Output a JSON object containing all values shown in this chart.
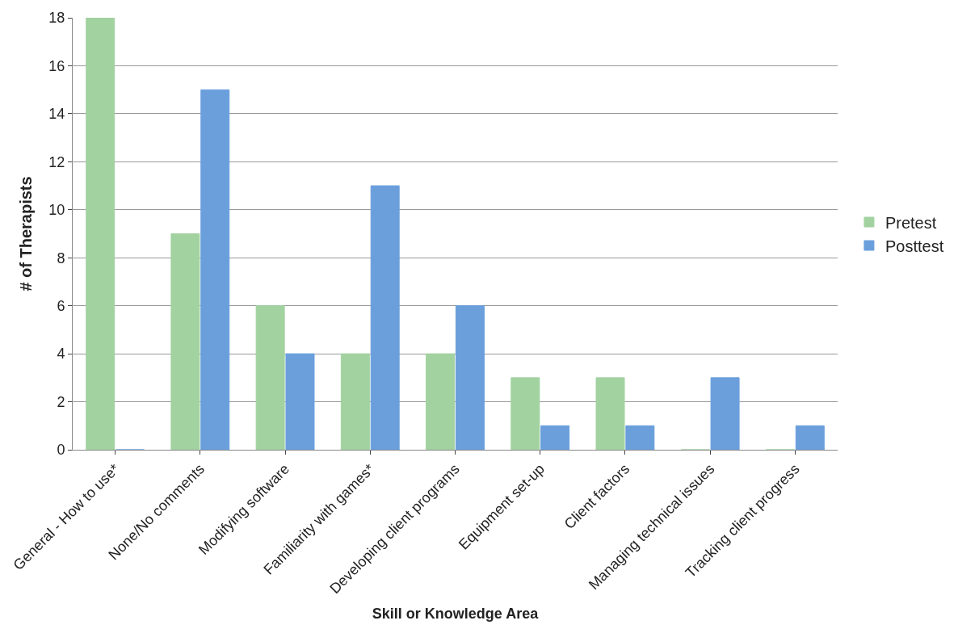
{
  "chart_data": {
    "type": "bar",
    "xlabel": "Skill or Knowledge Area",
    "ylabel": "# of Therapists",
    "categories": [
      "General - How to use*",
      "None/No comments",
      "Modifying software",
      "Familiarity with games*",
      "Developing client programs",
      "Equipment set-up",
      "Client factors",
      "Managing technical issues",
      "Tracking client progress"
    ],
    "series": [
      {
        "name": "Pretest",
        "color": "#a2d2a0",
        "values": [
          18,
          9,
          6,
          4,
          4,
          3,
          3,
          0,
          0
        ]
      },
      {
        "name": "Posttest",
        "color": "#6a9fdc",
        "values": [
          0,
          15,
          4,
          11,
          6,
          1,
          1,
          3,
          1
        ]
      }
    ],
    "ylim": [
      0,
      18
    ],
    "yticks": [
      0,
      2,
      4,
      6,
      8,
      10,
      12,
      14,
      16,
      18
    ],
    "grid": "y",
    "legend": "right"
  }
}
